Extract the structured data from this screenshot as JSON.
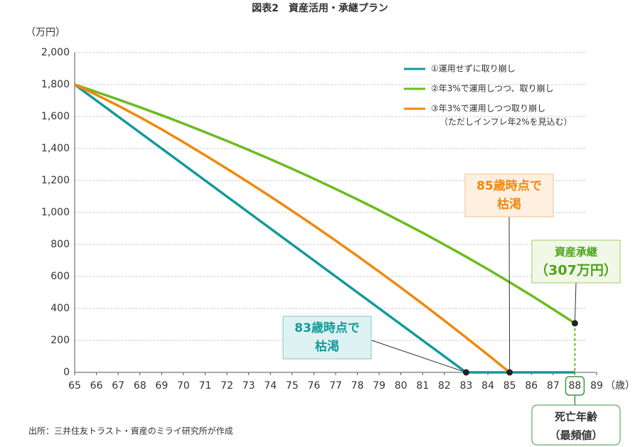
{
  "chart_data": {
    "type": "line",
    "title": "図表2　資産活用・承継プラン",
    "y_label": "（万円）",
    "x_label": "（歳）",
    "x": [
      65,
      66,
      67,
      68,
      69,
      70,
      71,
      72,
      73,
      74,
      75,
      76,
      77,
      78,
      79,
      80,
      81,
      82,
      83,
      84,
      85,
      86,
      87,
      88,
      89
    ],
    "xlim": [
      65,
      89
    ],
    "xticks": [
      65,
      66,
      67,
      68,
      69,
      70,
      71,
      72,
      73,
      74,
      75,
      76,
      77,
      78,
      79,
      80,
      81,
      82,
      83,
      84,
      85,
      86,
      87,
      88,
      89
    ],
    "ylim": [
      0,
      2000
    ],
    "yticks": [
      0,
      200,
      400,
      600,
      800,
      {
        "value": 1000,
        "label": "1,000"
      },
      {
        "value": 1200,
        "label": "1,200"
      },
      {
        "value": 1400,
        "label": "1,400"
      },
      {
        "value": 1600,
        "label": "1,600"
      },
      {
        "value": 1800,
        "label": "1,800"
      },
      {
        "value": 2000,
        "label": "2,000"
      }
    ],
    "grid": true,
    "series": [
      {
        "name": "①運用せずに取り崩し",
        "color": "#12999a",
        "values": [
          1800,
          1700,
          1600,
          1500,
          1400,
          1300,
          1200,
          1100,
          1000,
          900,
          800,
          700,
          600,
          500,
          400,
          300,
          200,
          100,
          0,
          0,
          0,
          0,
          0,
          0,
          null
        ]
      },
      {
        "name": "②年3%で運用しつつ、取り崩し",
        "color": "#6cbb1f",
        "values": [
          1800,
          1754,
          1707,
          1658,
          1608,
          1556,
          1502,
          1448,
          1391,
          1333,
          1273,
          1211,
          1147,
          1082,
          1014,
          944,
          873,
          799,
          723,
          645,
          564,
          481,
          395,
          307,
          null
        ]
      },
      {
        "name": "③年3%で運用しつつ取り崩し",
        "legend_note": "（ただしインフレ年2%を見込む）",
        "color": "#f0880e",
        "values": [
          1800,
          1736,
          1668,
          1596,
          1520,
          1440,
          1358,
          1274,
          1188,
          1100,
          1010,
          918,
          824,
          728,
          630,
          530,
          428,
          324,
          218,
          110,
          0,
          null,
          null,
          null,
          null
        ]
      }
    ],
    "annotations": [
      {
        "lines": [
          "83歳時点で",
          "枯渇"
        ]
      },
      {
        "lines": [
          "85歳時点で",
          "枯渇"
        ]
      },
      {
        "lines": [
          "資産承継",
          "（307万円）"
        ]
      },
      {
        "lines": [
          "死亡年齢",
          "（最頻値）"
        ]
      }
    ],
    "source": "出所：三井住友トラスト・資産のミライ研究所が作成"
  }
}
